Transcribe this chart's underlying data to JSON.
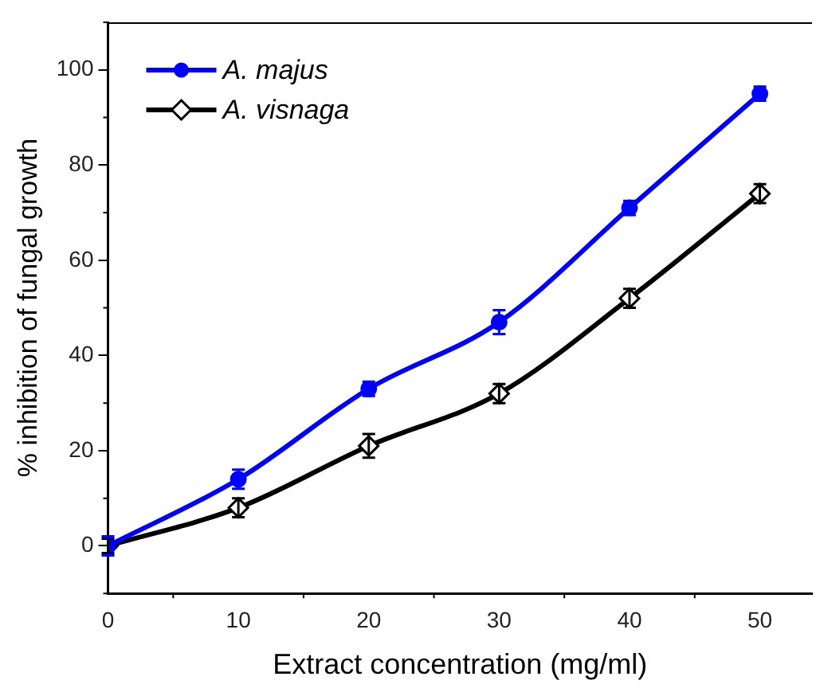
{
  "chart_data": {
    "type": "line",
    "xlabel": "Extract concentration (mg/ml)",
    "ylabel": "% inhibition of fungal growth",
    "x": [
      0,
      10,
      20,
      30,
      40,
      50
    ],
    "series": [
      {
        "name": "A. majus",
        "color": "#0000ff",
        "marker": "circle",
        "values": [
          0,
          14,
          33,
          47,
          71,
          95
        ],
        "errors": [
          2,
          2,
          1.5,
          2.5,
          1.5,
          1.5
        ]
      },
      {
        "name": "A. visnaga",
        "color": "#000000",
        "marker": "diamond",
        "values": [
          0,
          8,
          21,
          32,
          52,
          74
        ],
        "errors": [
          1.5,
          2,
          2.5,
          2,
          2,
          2
        ]
      }
    ],
    "xlim": [
      0,
      54
    ],
    "xticks": [
      0,
      10,
      20,
      30,
      40,
      50
    ],
    "ylim": [
      -10,
      110
    ],
    "yticks": [
      0,
      20,
      40,
      60,
      80,
      100
    ],
    "grid": false,
    "legend": "top left"
  }
}
